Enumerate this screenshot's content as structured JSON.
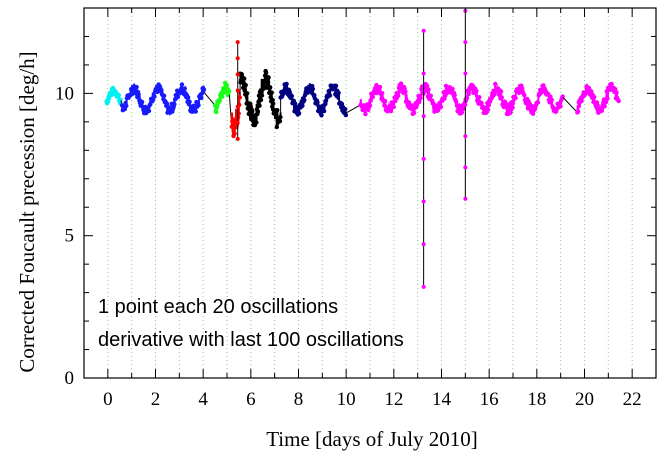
{
  "chart_data": {
    "type": "scatter",
    "title": "",
    "xlabel": "Time [days of July 2010]",
    "ylabel": "Corrected Foucault precession [deg/h]",
    "xlim": [
      -1,
      23
    ],
    "ylim": [
      0,
      13
    ],
    "xticks": [
      0,
      2,
      4,
      6,
      8,
      10,
      12,
      14,
      16,
      18,
      20,
      22
    ],
    "xtick_labels": [
      "0",
      "2",
      "4",
      "6",
      "8",
      "10",
      "12",
      "14",
      "16",
      "18",
      "20",
      "22"
    ],
    "yticks": [
      0,
      5,
      10
    ],
    "ytick_labels": [
      "0",
      "5",
      "10"
    ],
    "minor_x_step": 1,
    "minor_y_step": 1,
    "grid": {
      "vertical": true,
      "color": "#7fd67f",
      "style": "dotted"
    },
    "annotations": [
      "1 point each 20 oscillations",
      "derivative with last 100 oscillations"
    ],
    "baseline": 9.8,
    "connector_color": "#000000",
    "series": [
      {
        "color": "#00f0f0",
        "x_start": -0.05,
        "x_end": 0.55,
        "amplitude": 0.28,
        "period": 1.0,
        "points": 60
      },
      {
        "color": "#1a1aff",
        "x_start": 0.6,
        "x_end": 4.05,
        "amplitude": 0.38,
        "period": 1.0,
        "points": 240
      },
      {
        "color": "#1aff1a",
        "x_start": 4.5,
        "x_end": 5.1,
        "amplitude": 0.4,
        "period": 1.0,
        "points": 50
      },
      {
        "color": "#ff0000",
        "x_start": 5.2,
        "x_end": 5.55,
        "amplitude": 0.9,
        "period": 1.0,
        "points": 30
      },
      {
        "color": "#000000",
        "x_start": 5.55,
        "x_end": 7.25,
        "amplitude": 0.7,
        "period": 1.0,
        "points": 160
      },
      {
        "color": "#000080",
        "x_start": 7.25,
        "x_end": 10.0,
        "amplitude": 0.4,
        "period": 1.0,
        "points": 200
      },
      {
        "color": "#ff00ff",
        "x_start": 10.6,
        "x_end": 19.1,
        "amplitude": 0.38,
        "period": 1.0,
        "points": 560
      },
      {
        "color": "#ff00ff",
        "x_start": 19.7,
        "x_end": 21.45,
        "amplitude": 0.38,
        "period": 1.0,
        "points": 120
      }
    ],
    "spikes": [
      {
        "x": 5.45,
        "ymin": 8.4,
        "ymax": 11.8,
        "color": "#ff0000"
      },
      {
        "x": 13.25,
        "ymin": 3.2,
        "ymax": 12.2,
        "color": "#ff00ff"
      },
      {
        "x": 15.0,
        "ymin": 6.3,
        "ymax": 12.9,
        "color": "#ff00ff"
      }
    ]
  }
}
